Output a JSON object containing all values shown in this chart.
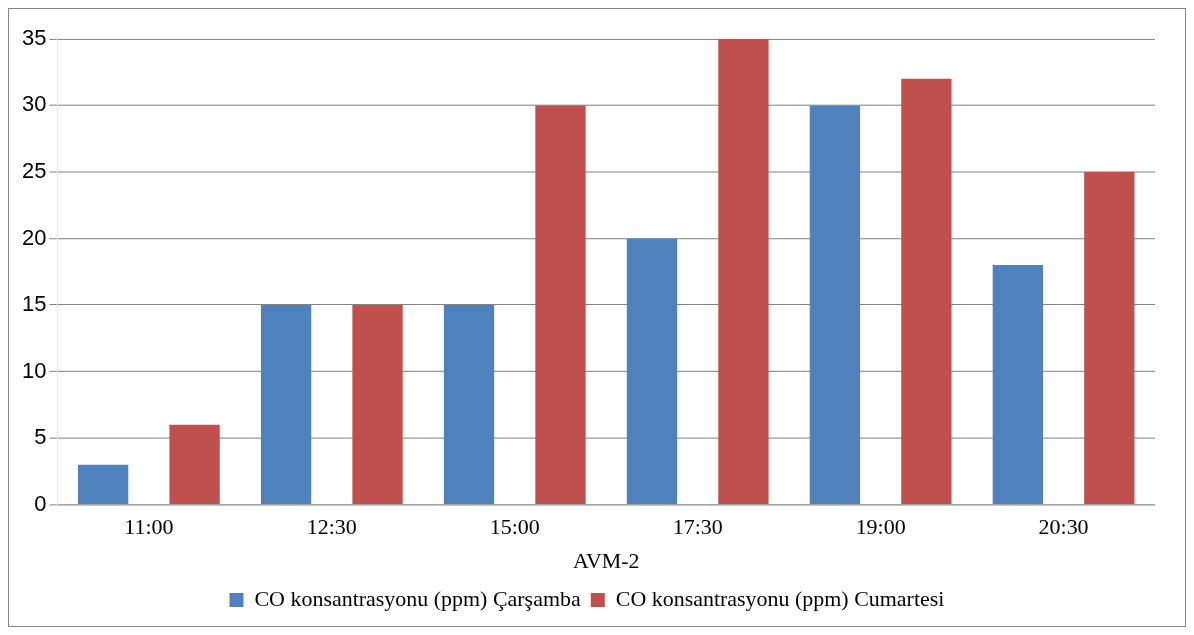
{
  "chart_data": {
    "type": "bar",
    "xlabel": "AVM-2",
    "categories": [
      "11:00",
      "12:30",
      "15:00",
      "17:30",
      "19:00",
      "20:30"
    ],
    "series": [
      {
        "name": "CO konsantrasyonu (ppm) Çarşamba",
        "color": "#4f81bd",
        "values": [
          3,
          15,
          15,
          20,
          30,
          18
        ]
      },
      {
        "name": "CO konsantrasyonu (ppm) Cumartesi",
        "color": "#c0504d",
        "values": [
          6,
          15,
          30,
          35,
          32,
          25
        ]
      }
    ],
    "ylim": [
      0,
      35
    ],
    "yticks": [
      0,
      5,
      10,
      15,
      20,
      25,
      30,
      35
    ],
    "grid": "y",
    "legend": "bottom"
  }
}
